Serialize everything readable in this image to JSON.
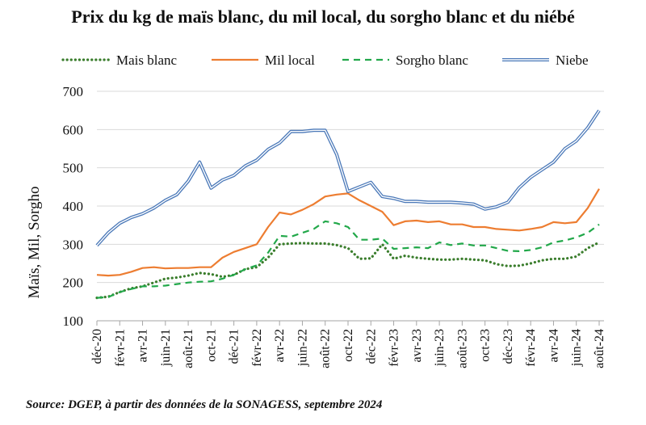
{
  "title": "Prix du kg de maïs blanc, du mil local, du sorgho blanc et du niébé",
  "source": "Source: DGEP, à partir des données de la SONAGESS, septembre 2024",
  "chart_data": {
    "type": "line",
    "ylabel": "Maïs, Mil, Sorgho",
    "ylim": [
      100,
      700
    ],
    "yticks": [
      100,
      200,
      300,
      400,
      500,
      600,
      700
    ],
    "grid": true,
    "legend_position": "top",
    "tick_labels": [
      "déc-20",
      "févr-21",
      "avr-21",
      "juin-21",
      "août-21",
      "oct-21",
      "déc-21",
      "févr-22",
      "avr-22",
      "juin-22",
      "août-22",
      "oct-22",
      "déc-22",
      "févr-23",
      "avr-23",
      "juin-23",
      "août-23",
      "oct-23",
      "déc-23",
      "févr-24",
      "avr-24",
      "juin-24",
      "août-24"
    ],
    "x": [
      "déc-20",
      "janv-21",
      "févr-21",
      "mars-21",
      "avr-21",
      "mai-21",
      "juin-21",
      "juil-21",
      "août-21",
      "sept-21",
      "oct-21",
      "nov-21",
      "déc-21",
      "janv-22",
      "févr-22",
      "mars-22",
      "avr-22",
      "mai-22",
      "juin-22",
      "juil-22",
      "août-22",
      "sept-22",
      "oct-22",
      "nov-22",
      "déc-22",
      "janv-23",
      "févr-23",
      "mars-23",
      "avr-23",
      "mai-23",
      "juin-23",
      "juil-23",
      "août-23",
      "sept-23",
      "oct-23",
      "nov-23",
      "déc-23",
      "janv-24",
      "févr-24",
      "mars-24",
      "avr-24",
      "mai-24",
      "juin-24",
      "juil-24",
      "août-24"
    ],
    "series": [
      {
        "name": "Mais blanc",
        "color": "#3a7d2c",
        "style": "dotted",
        "values": [
          160,
          163,
          175,
          185,
          190,
          200,
          210,
          213,
          218,
          225,
          222,
          215,
          220,
          235,
          240,
          265,
          300,
          302,
          303,
          302,
          302,
          298,
          290,
          262,
          263,
          300,
          262,
          270,
          265,
          262,
          260,
          260,
          262,
          260,
          258,
          248,
          243,
          244,
          250,
          258,
          262,
          262,
          268,
          290,
          305
        ]
      },
      {
        "name": "Mil local",
        "color": "#ed7d31",
        "style": "solid",
        "values": [
          220,
          218,
          220,
          228,
          238,
          240,
          237,
          238,
          238,
          240,
          240,
          265,
          280,
          290,
          300,
          345,
          383,
          378,
          390,
          405,
          425,
          430,
          433,
          415,
          400,
          385,
          350,
          360,
          362,
          358,
          360,
          352,
          352,
          345,
          345,
          340,
          338,
          336,
          340,
          345,
          358,
          355,
          358,
          395,
          445
        ]
      },
      {
        "name": "Sorgho blanc",
        "color": "#22a84a",
        "style": "dashed",
        "values": [
          160,
          162,
          175,
          183,
          190,
          190,
          192,
          196,
          200,
          202,
          203,
          210,
          220,
          235,
          245,
          278,
          322,
          320,
          330,
          340,
          360,
          355,
          345,
          312,
          312,
          315,
          288,
          290,
          292,
          290,
          305,
          298,
          302,
          297,
          297,
          290,
          283,
          282,
          285,
          292,
          305,
          310,
          318,
          330,
          352
        ]
      },
      {
        "name": "Niebe",
        "color": "#4a78b8",
        "style": "double",
        "values": [
          297,
          330,
          355,
          370,
          380,
          395,
          415,
          430,
          465,
          515,
          447,
          468,
          480,
          505,
          520,
          548,
          565,
          595,
          595,
          598,
          598,
          535,
          438,
          450,
          462,
          425,
          420,
          412,
          412,
          410,
          410,
          410,
          408,
          405,
          392,
          398,
          410,
          448,
          475,
          495,
          515,
          550,
          570,
          605,
          650
        ]
      }
    ]
  }
}
